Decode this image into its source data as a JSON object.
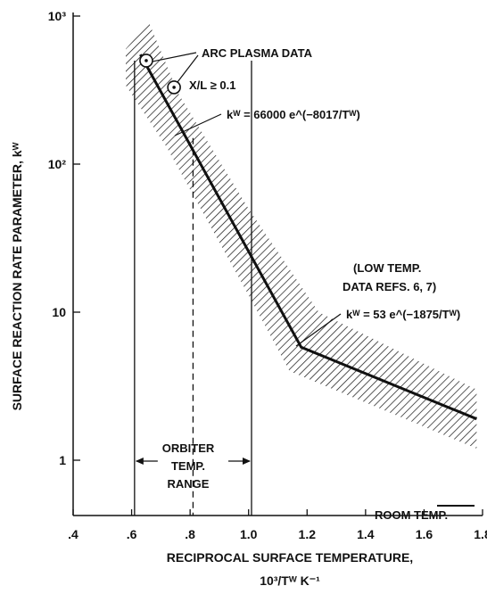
{
  "chart_data": {
    "type": "line",
    "xlabel": "RECIPROCAL SURFACE TEMPERATURE,",
    "xlabel_units": "10³/Tᵂ K⁻¹",
    "ylabel": "SURFACE REACTION RATE PARAMETER, kᵂ",
    "x_scale": "linear",
    "y_scale": "log",
    "xlim": [
      0.4,
      1.8
    ],
    "ylim": [
      0.3,
      1000
    ],
    "x_ticks": [
      ".4",
      ".6",
      ".8",
      "1.0",
      "1.2",
      "1.4",
      "1.6",
      "1.8"
    ],
    "x_tick_values": [
      0.4,
      0.6,
      0.8,
      1.0,
      1.2,
      1.4,
      1.6,
      1.8
    ],
    "y_ticks": [
      "1",
      "10",
      "10²",
      "10³"
    ],
    "y_tick_values": [
      1,
      10,
      100,
      1000
    ],
    "grid": false,
    "series": [
      {
        "x": [
          0.63,
          1.18,
          1.78
        ],
        "y": [
          550,
          5.8,
          1.9
        ]
      }
    ],
    "band_upper": [
      [
        0.58,
        600
      ],
      [
        0.66,
        900
      ],
      [
        0.76,
        300
      ],
      [
        1.0,
        50
      ],
      [
        1.24,
        10
      ],
      [
        1.78,
        3.0
      ]
    ],
    "band_lower": [
      [
        0.58,
        340
      ],
      [
        0.72,
        130
      ],
      [
        1.0,
        13
      ],
      [
        1.14,
        4.0
      ],
      [
        1.78,
        1.2
      ]
    ],
    "arc_plasma_points": [
      {
        "x": 0.65,
        "y": 500
      },
      {
        "x": 0.745,
        "y": 330
      }
    ],
    "verticals": {
      "solid": [
        0.61,
        1.01
      ],
      "dashed": [
        0.81
      ]
    },
    "annotations": {
      "arc_plasma": "ARC PLASMA DATA",
      "x_over_l": "X/L ≥ 0.1",
      "eq_high": "kᵂ = 66000 e^(−8017/Tᵂ)",
      "low_temp_1": "(LOW TEMP.",
      "low_temp_2": "DATA REFS. 6, 7)",
      "eq_low": "kᵂ = 53 e^(−1875/Tᵂ)",
      "orbiter_1": "ORBITER",
      "orbiter_2": "TEMP.",
      "orbiter_3": "RANGE",
      "room_temp": "ROOM TEMP."
    }
  }
}
